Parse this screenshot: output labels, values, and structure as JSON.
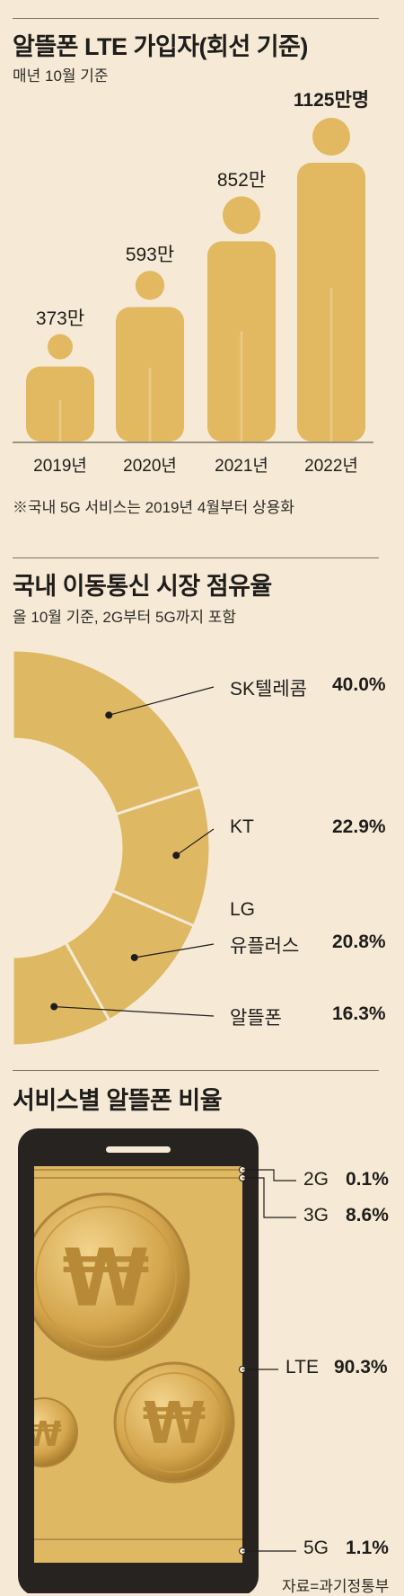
{
  "colors": {
    "background": "#f6ead6",
    "figure": "#e2b860",
    "slice": "#dfb863",
    "phone": "#262320",
    "money": "#ddb35c"
  },
  "icons": {
    "person": "person-icon",
    "coin": "won-coin-icon",
    "phone": "smartphone-icon"
  },
  "chart_data": [
    {
      "type": "bar",
      "title": "알뜰폰 LTE 가입자(회선 기준)",
      "subtitle": "매년 10월 기준",
      "categories": [
        "2019년",
        "2020년",
        "2021년",
        "2022년"
      ],
      "values": [
        373,
        593,
        852,
        1125
      ],
      "value_labels": [
        "373만",
        "593만",
        "852만",
        "1125만명"
      ],
      "note": "※국내 5G 서비스는 2019년 4월부터 상용화"
    },
    {
      "type": "pie",
      "title": "국내 이동통신 시장 점유율",
      "subtitle": "올 10월 기준, 2G부터 5G까지 포함",
      "slices": [
        {
          "name": "SK텔레콤",
          "value": 40.0,
          "label": "40.0%"
        },
        {
          "name": "KT",
          "value": 22.9,
          "label": "22.9%"
        },
        {
          "name_lines": [
            "LG",
            "유플러스"
          ],
          "value": 20.8,
          "label": "20.8%"
        },
        {
          "name": "알뜰폰",
          "value": 16.3,
          "label": "16.3%"
        }
      ]
    },
    {
      "type": "bar",
      "title": "서비스별 알뜰폰 비율",
      "categories": [
        "2G",
        "3G",
        "LTE",
        "5G"
      ],
      "values": [
        0.1,
        8.6,
        90.3,
        1.1
      ],
      "value_labels": [
        "0.1%",
        "8.6%",
        "90.3%",
        "1.1%"
      ]
    }
  ],
  "source": "자료=과기정통부"
}
